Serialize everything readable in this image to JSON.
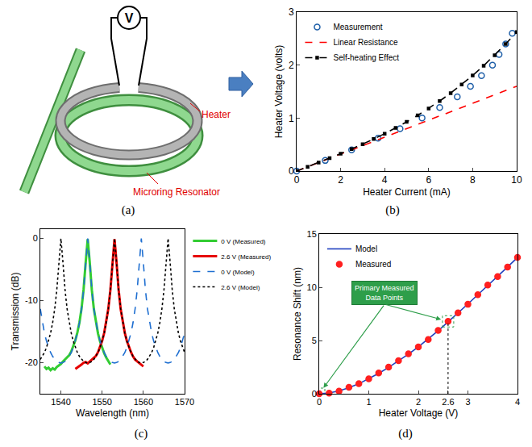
{
  "diagram": {
    "label": "(a)",
    "voltage": "V",
    "heater": "Heater",
    "resonator": "Microring Resonator"
  },
  "chart_data": [
    {
      "label": "(b)",
      "type": "line",
      "x_label": "Heater Current (mA)",
      "y_label": "Heater Voltage (volts)",
      "xlim": [
        0,
        10
      ],
      "xticks": [
        0,
        2,
        4,
        6,
        8,
        10
      ],
      "ylim": [
        0,
        3
      ],
      "yticks": [
        0,
        1,
        2,
        3
      ],
      "grid": false,
      "legend": "upper left",
      "series": [
        {
          "name": "Measurement",
          "type": "scatter",
          "marker": "open circle",
          "color": "#1f5fa8",
          "x": [
            0,
            1.3,
            2.5,
            3.7,
            4.7,
            5.7,
            6.5,
            7.3,
            7.9,
            8.4,
            8.9,
            9.2,
            9.5,
            9.8
          ],
          "values": [
            0,
            0.2,
            0.4,
            0.62,
            0.8,
            1.0,
            1.2,
            1.4,
            1.6,
            1.8,
            2.0,
            2.2,
            2.4,
            2.6
          ]
        },
        {
          "name": "Linear Resistance",
          "type": "line",
          "line_style": "dash",
          "color": "#ff0000",
          "x": [
            0,
            10
          ],
          "values": [
            0,
            1.6
          ]
        },
        {
          "name": "Self-heating Effect",
          "type": "line",
          "line_style": "dash",
          "marker": "square",
          "color": "#000000",
          "x": [
            0,
            0.5,
            1,
            1.5,
            2,
            2.5,
            3,
            3.5,
            4,
            4.5,
            5,
            5.5,
            6,
            6.5,
            7,
            7.5,
            8,
            8.5,
            9,
            9.5,
            10
          ],
          "values": [
            0,
            0.08,
            0.161,
            0.243,
            0.328,
            0.416,
            0.508,
            0.604,
            0.706,
            0.813,
            0.928,
            1.05,
            1.181,
            1.321,
            1.471,
            1.632,
            1.804,
            1.989,
            2.186,
            2.398,
            2.624
          ]
        }
      ]
    },
    {
      "label": "(c)",
      "type": "line",
      "x_label": "Wavelength (nm)",
      "y_label": "Transmission (dB)",
      "xlim": [
        1535,
        1570
      ],
      "xticks": [
        1540,
        1550,
        1560,
        1570
      ],
      "ylim": [
        -25,
        1.5
      ],
      "yticks": [
        -20,
        -10,
        0
      ],
      "grid": false,
      "legend": "right",
      "series": [
        {
          "name": "0 V (Measured)",
          "type": "line",
          "line_style": "solid",
          "color": "#33cc33",
          "x": [
            1536,
            1536.5,
            1537,
            1537.5,
            1538,
            1538.5,
            1539,
            1539.5,
            1540,
            1540.5,
            1541,
            1541.5,
            1542,
            1542.5,
            1543,
            1543.5,
            1544,
            1544.5,
            1545,
            1545.5,
            1546,
            1546.5,
            1547,
            1547.5,
            1548,
            1548.5,
            1549,
            1549.5,
            1550,
            1550.5,
            1551,
            1551.5,
            1552
          ],
          "values": [
            -20.6,
            -21.0,
            -20.8,
            -21.2,
            -20.9,
            -21.1,
            -20.7,
            -20.5,
            -20.2,
            -19.8,
            -19.5,
            -19.2,
            -18.8,
            -18.2,
            -17.4,
            -16.4,
            -15.1,
            -13.5,
            -11.3,
            -8.2,
            -3.9,
            -0.1,
            -3.9,
            -8.3,
            -11.4,
            -13.6,
            -15.3,
            -16.6,
            -17.6,
            -18.5,
            -19.2,
            -19.8,
            -20.3
          ]
        },
        {
          "name": "2.6 V (Measured)",
          "type": "line",
          "line_style": "solid",
          "color": "#e60000",
          "x": [
            1543.5,
            1544,
            1544.5,
            1545,
            1545.5,
            1546,
            1546.5,
            1547,
            1547.5,
            1548,
            1548.5,
            1549,
            1549.5,
            1550,
            1550.5,
            1551,
            1551.5,
            1552,
            1552.5,
            1553,
            1553.5,
            1554,
            1554.5,
            1555,
            1555.5,
            1556,
            1556.5,
            1557,
            1557.5,
            1558,
            1558.5,
            1559,
            1559.5,
            1560
          ],
          "values": [
            -21.0,
            -20.8,
            -20.5,
            -20.3,
            -20.0,
            -19.9,
            -20.1,
            -19.8,
            -19.6,
            -19.3,
            -18.9,
            -18.3,
            -17.5,
            -16.5,
            -15.2,
            -13.5,
            -11.3,
            -8.3,
            -3.9,
            -0.1,
            -3.9,
            -8.3,
            -11.4,
            -13.6,
            -15.2,
            -16.5,
            -17.5,
            -18.3,
            -19.0,
            -19.5,
            -19.8,
            -20.1,
            -20.4,
            -20.6
          ]
        },
        {
          "name": "0 V (Model)",
          "type": "line",
          "line_style": "dash",
          "color": "#1f6fd1",
          "x": [
            1535,
            1535.5,
            1536,
            1536.5,
            1537,
            1537.5,
            1538,
            1538.5,
            1539,
            1539.5,
            1540,
            1540.5,
            1541,
            1541.5,
            1542,
            1542.5,
            1543,
            1543.5,
            1544,
            1544.5,
            1545,
            1545.5,
            1546,
            1546.5,
            1547,
            1547.5,
            1548,
            1548.5,
            1549,
            1549.5,
            1550,
            1550.5,
            1551,
            1551.5,
            1552,
            1552.5,
            1553,
            1553.5,
            1554,
            1554.5,
            1555,
            1555.5,
            1556,
            1556.5,
            1557,
            1557.5,
            1558,
            1558.5,
            1559,
            1559.5,
            1560,
            1560.5,
            1561,
            1561.5,
            1562,
            1562.5,
            1563,
            1563.5,
            1564,
            1564.5,
            1565,
            1565.5,
            1566,
            1566.5,
            1567,
            1567.5,
            1568,
            1568.5,
            1569,
            1569.5,
            1570
          ],
          "values": [
            -11.33,
            -13.54,
            -15.22,
            -16.53,
            -17.56,
            -18.37,
            -19.0,
            -19.47,
            -19.79,
            -19.98,
            -20.04,
            -19.98,
            -19.79,
            -19.47,
            -19.0,
            -18.37,
            -17.56,
            -16.53,
            -15.22,
            -13.54,
            -11.33,
            -8.28,
            -3.9,
            0,
            -3.9,
            -8.28,
            -11.33,
            -13.54,
            -15.22,
            -16.53,
            -17.56,
            -18.37,
            -19.0,
            -19.47,
            -19.79,
            -19.98,
            -20.04,
            -19.98,
            -19.79,
            -19.47,
            -19.0,
            -18.37,
            -17.56,
            -16.53,
            -15.22,
            -13.54,
            -11.33,
            -8.28,
            -3.9,
            0,
            -3.9,
            -8.28,
            -11.33,
            -13.54,
            -15.22,
            -16.53,
            -17.56,
            -18.37,
            -19.0,
            -19.47,
            -19.79,
            -19.98,
            -20.04,
            -19.98,
            -19.79,
            -19.47,
            -19.0,
            -18.37,
            -17.56,
            -16.53,
            -15.22
          ]
        },
        {
          "name": "2.6 V (Model)",
          "type": "line",
          "line_style": "dot",
          "color": "#000000",
          "x": [
            1535,
            1535.5,
            1536,
            1536.5,
            1537,
            1537.5,
            1538,
            1538.5,
            1539,
            1539.5,
            1540,
            1540.5,
            1541,
            1541.5,
            1542,
            1542.5,
            1543,
            1543.5,
            1544,
            1544.5,
            1545,
            1545.5,
            1546,
            1546.5,
            1547,
            1547.5,
            1548,
            1548.5,
            1549,
            1549.5,
            1550,
            1550.5,
            1551,
            1551.5,
            1552,
            1552.5,
            1553,
            1553.5,
            1554,
            1554.5,
            1555,
            1555.5,
            1556,
            1556.5,
            1557,
            1557.5,
            1558,
            1558.5,
            1559,
            1559.5,
            1560,
            1560.5,
            1561,
            1561.5,
            1562,
            1562.5,
            1563,
            1563.5,
            1564,
            1564.5,
            1565,
            1565.5,
            1566,
            1566.5,
            1567,
            1567.5,
            1568,
            1568.5,
            1569,
            1569.5,
            1570
          ],
          "values": [
            -19.47,
            -19.0,
            -18.37,
            -17.56,
            -16.53,
            -15.22,
            -13.54,
            -11.33,
            -8.28,
            -3.9,
            0,
            -3.9,
            -8.28,
            -11.33,
            -13.54,
            -15.22,
            -16.53,
            -17.56,
            -18.37,
            -19.0,
            -19.47,
            -19.79,
            -19.98,
            -20.04,
            -19.98,
            -19.79,
            -19.47,
            -19.0,
            -18.37,
            -17.56,
            -16.53,
            -15.22,
            -13.54,
            -11.33,
            -8.28,
            -3.9,
            0,
            -3.9,
            -8.28,
            -11.33,
            -13.54,
            -15.22,
            -16.53,
            -17.56,
            -18.37,
            -19.0,
            -19.47,
            -19.79,
            -19.98,
            -20.04,
            -19.98,
            -19.79,
            -19.47,
            -19.0,
            -18.37,
            -17.56,
            -16.53,
            -15.22,
            -13.54,
            -11.33,
            -8.28,
            -3.9,
            0,
            -3.9,
            -8.28,
            -11.33,
            -13.54,
            -15.22,
            -16.53,
            -17.56,
            -18.37
          ]
        }
      ]
    },
    {
      "label": "(d)",
      "type": "line",
      "x_label": "Heater Voltage (V)",
      "y_label": "Resonance Shift (nm)",
      "xlim": [
        0,
        4
      ],
      "xticks": [
        0,
        1,
        2,
        2.6,
        3,
        4
      ],
      "ylim": [
        0,
        15
      ],
      "yticks": [
        0,
        5,
        10,
        15
      ],
      "grid": false,
      "legend": "upper left",
      "series": [
        {
          "name": "Model",
          "type": "line",
          "line_style": "solid",
          "color": "#1f3fbf",
          "x": [
            0,
            0.2,
            0.4,
            0.6,
            0.8,
            1.0,
            1.2,
            1.4,
            1.6,
            1.8,
            2.0,
            2.2,
            2.4,
            2.6,
            2.8,
            3.0,
            3.2,
            3.4,
            3.6,
            3.8,
            4.0
          ],
          "values": [
            0,
            0.07,
            0.26,
            0.56,
            0.94,
            1.4,
            1.91,
            2.47,
            3.07,
            3.72,
            4.4,
            5.13,
            5.91,
            6.75,
            7.57,
            8.43,
            9.3,
            10.15,
            11.0,
            11.9,
            12.8
          ]
        },
        {
          "name": "Measured",
          "type": "scatter",
          "marker": "circle",
          "color": "#ff2020",
          "x": [
            0,
            0.2,
            0.4,
            0.6,
            0.8,
            1.0,
            1.2,
            1.4,
            1.6,
            1.8,
            2.0,
            2.2,
            2.4,
            2.6,
            2.8,
            3.0,
            3.2,
            3.4,
            3.6,
            3.8,
            4.0
          ],
          "values": [
            0,
            0.05,
            0.25,
            0.6,
            0.95,
            1.4,
            1.95,
            2.5,
            3.1,
            3.75,
            4.4,
            5.1,
            5.95,
            6.8,
            7.6,
            8.4,
            9.3,
            10.2,
            11.0,
            11.9,
            12.8
          ]
        }
      ],
      "annotations": [
        {
          "text": "Primary Measured Data Points",
          "x": [
            0,
            2.6
          ],
          "y": [
            0,
            6.8
          ]
        }
      ]
    }
  ]
}
